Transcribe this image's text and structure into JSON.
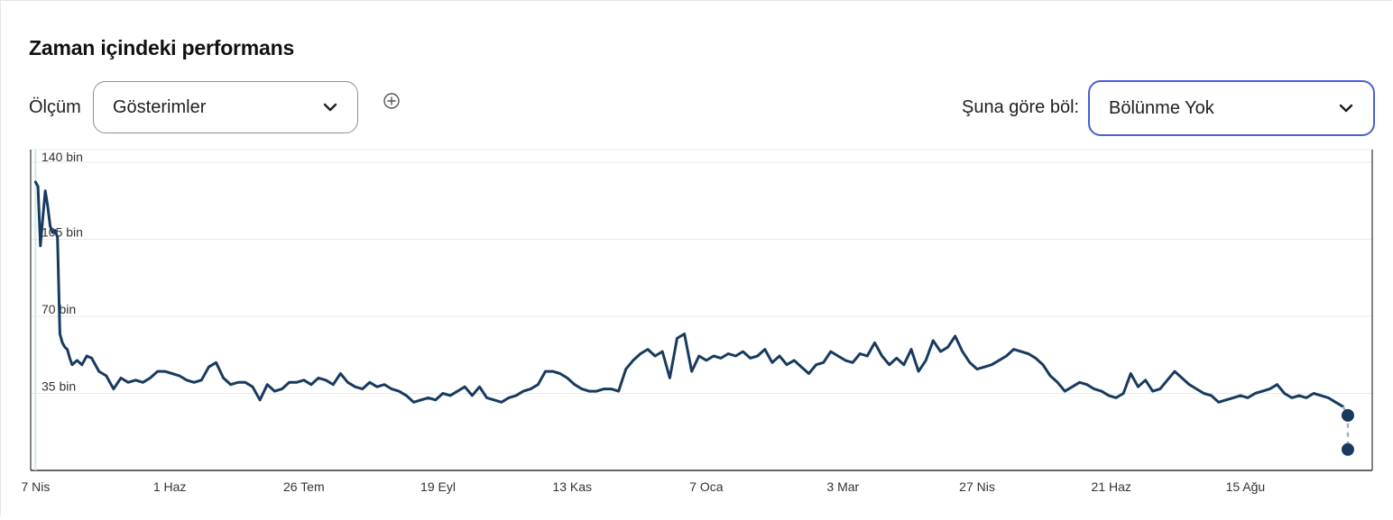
{
  "header": {
    "title": "Zaman içindeki performans"
  },
  "metric": {
    "label": "Ölçüm",
    "value": "Gösterimler",
    "add_icon": "plus-circle-icon"
  },
  "split": {
    "label": "Şuna göre böl:",
    "value": "Bölünme Yok"
  },
  "colors": {
    "line": "#173a5e",
    "accent_border": "#4a5fd6",
    "grid": "#e8e8e8"
  },
  "chart_data": {
    "type": "line",
    "x_start": "2023-04-05",
    "x_end": "2024-10-06",
    "x_ticks": [
      {
        "date": "2023-04-07",
        "label": "7 Nis"
      },
      {
        "date": "2023-06-01",
        "label": "1 Haz"
      },
      {
        "date": "2023-07-26",
        "label": "26 Tem"
      },
      {
        "date": "2023-09-19",
        "label": "19 Eyl"
      },
      {
        "date": "2023-11-13",
        "label": "13 Kas"
      },
      {
        "date": "2024-01-07",
        "label": "7 Oca"
      },
      {
        "date": "2024-03-03",
        "label": "3 Mar"
      },
      {
        "date": "2024-04-27",
        "label": "27 Nis"
      },
      {
        "date": "2024-06-21",
        "label": "21 Haz"
      },
      {
        "date": "2024-08-15",
        "label": "15 Ağu"
      }
    ],
    "y_ticks": [
      {
        "value": 35000,
        "label": "35 bin"
      },
      {
        "value": 70000,
        "label": "70 bin"
      },
      {
        "value": 105000,
        "label": "105 bin"
      },
      {
        "value": 140000,
        "label": "140 bin"
      }
    ],
    "ylim": [
      0,
      140000
    ],
    "grid": true,
    "series": [
      {
        "points": [
          [
            "2023-04-07",
            131000
          ],
          [
            "2023-04-08",
            129000
          ],
          [
            "2023-04-09",
            102000
          ],
          [
            "2023-04-10",
            115000
          ],
          [
            "2023-04-11",
            127000
          ],
          [
            "2023-04-12",
            120000
          ],
          [
            "2023-04-13",
            111000
          ],
          [
            "2023-04-14",
            108000
          ],
          [
            "2023-04-15",
            109000
          ],
          [
            "2023-04-16",
            106000
          ],
          [
            "2023-04-17",
            62000
          ],
          [
            "2023-04-18",
            58000
          ],
          [
            "2023-04-19",
            56000
          ],
          [
            "2023-04-20",
            55000
          ],
          [
            "2023-04-21",
            51000
          ],
          [
            "2023-04-22",
            48000
          ],
          [
            "2023-04-24",
            50000
          ],
          [
            "2023-04-26",
            48000
          ],
          [
            "2023-04-28",
            52000
          ],
          [
            "2023-04-30",
            51000
          ],
          [
            "2023-05-03",
            45000
          ],
          [
            "2023-05-06",
            43000
          ],
          [
            "2023-05-09",
            37000
          ],
          [
            "2023-05-12",
            42000
          ],
          [
            "2023-05-15",
            40000
          ],
          [
            "2023-05-18",
            41000
          ],
          [
            "2023-05-21",
            40000
          ],
          [
            "2023-05-24",
            42000
          ],
          [
            "2023-05-27",
            45000
          ],
          [
            "2023-05-30",
            45000
          ],
          [
            "2023-06-02",
            44000
          ],
          [
            "2023-06-05",
            43000
          ],
          [
            "2023-06-08",
            41000
          ],
          [
            "2023-06-11",
            40000
          ],
          [
            "2023-06-14",
            41000
          ],
          [
            "2023-06-17",
            47000
          ],
          [
            "2023-06-20",
            49000
          ],
          [
            "2023-06-23",
            42000
          ],
          [
            "2023-06-26",
            39000
          ],
          [
            "2023-06-29",
            40000
          ],
          [
            "2023-07-02",
            40000
          ],
          [
            "2023-07-05",
            38000
          ],
          [
            "2023-07-08",
            32000
          ],
          [
            "2023-07-11",
            39000
          ],
          [
            "2023-07-14",
            36000
          ],
          [
            "2023-07-17",
            37000
          ],
          [
            "2023-07-20",
            40000
          ],
          [
            "2023-07-23",
            40000
          ],
          [
            "2023-07-26",
            41000
          ],
          [
            "2023-07-29",
            39000
          ],
          [
            "2023-08-01",
            42000
          ],
          [
            "2023-08-04",
            41000
          ],
          [
            "2023-08-07",
            39000
          ],
          [
            "2023-08-10",
            44000
          ],
          [
            "2023-08-13",
            40000
          ],
          [
            "2023-08-16",
            38000
          ],
          [
            "2023-08-19",
            37000
          ],
          [
            "2023-08-22",
            40000
          ],
          [
            "2023-08-25",
            38000
          ],
          [
            "2023-08-28",
            39000
          ],
          [
            "2023-08-31",
            37000
          ],
          [
            "2023-09-03",
            36000
          ],
          [
            "2023-09-06",
            34000
          ],
          [
            "2023-09-09",
            31000
          ],
          [
            "2023-09-12",
            32000
          ],
          [
            "2023-09-15",
            33000
          ],
          [
            "2023-09-18",
            32000
          ],
          [
            "2023-09-21",
            35000
          ],
          [
            "2023-09-24",
            34000
          ],
          [
            "2023-09-27",
            36000
          ],
          [
            "2023-09-30",
            38000
          ],
          [
            "2023-10-03",
            34000
          ],
          [
            "2023-10-06",
            38000
          ],
          [
            "2023-10-09",
            33000
          ],
          [
            "2023-10-12",
            32000
          ],
          [
            "2023-10-15",
            31000
          ],
          [
            "2023-10-18",
            33000
          ],
          [
            "2023-10-21",
            34000
          ],
          [
            "2023-10-24",
            36000
          ],
          [
            "2023-10-27",
            37000
          ],
          [
            "2023-10-30",
            39000
          ],
          [
            "2023-11-02",
            45000
          ],
          [
            "2023-11-05",
            45000
          ],
          [
            "2023-11-08",
            44000
          ],
          [
            "2023-11-11",
            42000
          ],
          [
            "2023-11-14",
            39000
          ],
          [
            "2023-11-17",
            37000
          ],
          [
            "2023-11-20",
            36000
          ],
          [
            "2023-11-23",
            36000
          ],
          [
            "2023-11-26",
            37000
          ],
          [
            "2023-11-29",
            37000
          ],
          [
            "2023-12-02",
            36000
          ],
          [
            "2023-12-05",
            46000
          ],
          [
            "2023-12-08",
            50000
          ],
          [
            "2023-12-11",
            53000
          ],
          [
            "2023-12-14",
            55000
          ],
          [
            "2023-12-17",
            52000
          ],
          [
            "2023-12-20",
            54000
          ],
          [
            "2023-12-23",
            42000
          ],
          [
            "2023-12-26",
            60000
          ],
          [
            "2023-12-29",
            62000
          ],
          [
            "2024-01-01",
            45000
          ],
          [
            "2024-01-04",
            52000
          ],
          [
            "2024-01-07",
            50000
          ],
          [
            "2024-01-10",
            52000
          ],
          [
            "2024-01-13",
            51000
          ],
          [
            "2024-01-16",
            53000
          ],
          [
            "2024-01-19",
            52000
          ],
          [
            "2024-01-22",
            54000
          ],
          [
            "2024-01-25",
            51000
          ],
          [
            "2024-01-28",
            52000
          ],
          [
            "2024-01-31",
            55000
          ],
          [
            "2024-02-03",
            49000
          ],
          [
            "2024-02-06",
            52000
          ],
          [
            "2024-02-09",
            48000
          ],
          [
            "2024-02-12",
            50000
          ],
          [
            "2024-02-15",
            47000
          ],
          [
            "2024-02-18",
            44000
          ],
          [
            "2024-02-21",
            48000
          ],
          [
            "2024-02-24",
            49000
          ],
          [
            "2024-02-27",
            54000
          ],
          [
            "2024-03-01",
            52000
          ],
          [
            "2024-03-04",
            50000
          ],
          [
            "2024-03-07",
            49000
          ],
          [
            "2024-03-10",
            53000
          ],
          [
            "2024-03-13",
            52000
          ],
          [
            "2024-03-16",
            58000
          ],
          [
            "2024-03-19",
            52000
          ],
          [
            "2024-03-22",
            48000
          ],
          [
            "2024-03-25",
            51000
          ],
          [
            "2024-03-28",
            48000
          ],
          [
            "2024-03-31",
            55000
          ],
          [
            "2024-04-03",
            45000
          ],
          [
            "2024-04-06",
            50000
          ],
          [
            "2024-04-09",
            59000
          ],
          [
            "2024-04-12",
            54000
          ],
          [
            "2024-04-15",
            56000
          ],
          [
            "2024-04-18",
            61000
          ],
          [
            "2024-04-21",
            54000
          ],
          [
            "2024-04-24",
            49000
          ],
          [
            "2024-04-27",
            46000
          ],
          [
            "2024-04-30",
            47000
          ],
          [
            "2024-05-03",
            48000
          ],
          [
            "2024-05-06",
            50000
          ],
          [
            "2024-05-09",
            52000
          ],
          [
            "2024-05-12",
            55000
          ],
          [
            "2024-05-15",
            54000
          ],
          [
            "2024-05-18",
            53000
          ],
          [
            "2024-05-21",
            51000
          ],
          [
            "2024-05-24",
            48000
          ],
          [
            "2024-05-27",
            43000
          ],
          [
            "2024-05-30",
            40000
          ],
          [
            "2024-06-02",
            36000
          ],
          [
            "2024-06-05",
            38000
          ],
          [
            "2024-06-08",
            40000
          ],
          [
            "2024-06-11",
            39000
          ],
          [
            "2024-06-14",
            37000
          ],
          [
            "2024-06-17",
            36000
          ],
          [
            "2024-06-20",
            34000
          ],
          [
            "2024-06-23",
            33000
          ],
          [
            "2024-06-26",
            35000
          ],
          [
            "2024-06-29",
            44000
          ],
          [
            "2024-07-02",
            38000
          ],
          [
            "2024-07-05",
            41000
          ],
          [
            "2024-07-08",
            36000
          ],
          [
            "2024-07-11",
            37000
          ],
          [
            "2024-07-14",
            41000
          ],
          [
            "2024-07-17",
            45000
          ],
          [
            "2024-07-20",
            42000
          ],
          [
            "2024-07-23",
            39000
          ],
          [
            "2024-07-26",
            37000
          ],
          [
            "2024-07-29",
            35000
          ],
          [
            "2024-08-01",
            34000
          ],
          [
            "2024-08-04",
            31000
          ],
          [
            "2024-08-07",
            32000
          ],
          [
            "2024-08-10",
            33000
          ],
          [
            "2024-08-13",
            34000
          ],
          [
            "2024-08-16",
            33000
          ],
          [
            "2024-08-19",
            35000
          ],
          [
            "2024-08-22",
            36000
          ],
          [
            "2024-08-25",
            37000
          ],
          [
            "2024-08-28",
            39000
          ],
          [
            "2024-08-31",
            35000
          ],
          [
            "2024-09-03",
            33000
          ],
          [
            "2024-09-06",
            34000
          ],
          [
            "2024-09-09",
            33000
          ],
          [
            "2024-09-12",
            35000
          ],
          [
            "2024-09-15",
            34000
          ],
          [
            "2024-09-18",
            33000
          ],
          [
            "2024-09-21",
            31000
          ],
          [
            "2024-09-24",
            29000
          ]
        ],
        "projected_points": [
          [
            "2024-09-26",
            25000
          ],
          [
            "2024-09-26",
            9500
          ]
        ]
      }
    ]
  }
}
